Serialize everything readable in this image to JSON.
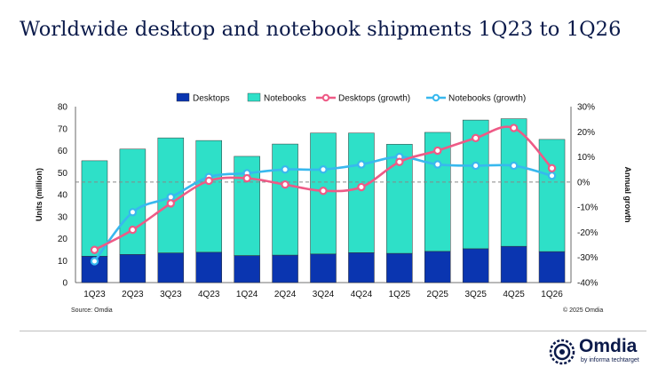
{
  "title": "Worldwide desktop and notebook shipments 1Q23 to 1Q26",
  "footer": {
    "source": "Source: Omdia",
    "copyright": "© 2025 Omdia"
  },
  "brand": {
    "name": "Omdia",
    "tagline": "by informa techtarget",
    "color": "#0b1a4a"
  },
  "chart_data": {
    "type": "bar",
    "stacked": true,
    "title": "Worldwide desktop and notebook shipments 1Q23 to 1Q26",
    "categories": [
      "1Q23",
      "2Q23",
      "3Q23",
      "4Q23",
      "1Q24",
      "2Q24",
      "3Q24",
      "4Q24",
      "1Q25",
      "2Q25",
      "3Q25",
      "4Q25",
      "1Q26"
    ],
    "ylabel": "Units (million)",
    "y2label": "Annual growth",
    "ylim": [
      0,
      80
    ],
    "yticks": [
      "0",
      "10",
      "20",
      "30",
      "40",
      "50",
      "60",
      "70",
      "80"
    ],
    "y2lim": [
      -40,
      30
    ],
    "y2ticks": [
      "-40%",
      "-30%",
      "-20%",
      "-10%",
      "0%",
      "10%",
      "20%",
      "30%"
    ],
    "zero_line_on_secondary": true,
    "legend_position": "top",
    "series": [
      {
        "name": "Desktops",
        "kind": "bar",
        "axis": "primary",
        "color": "#0a35b0",
        "values": [
          12.0,
          12.8,
          13.5,
          13.8,
          12.3,
          12.5,
          13.0,
          13.6,
          13.3,
          14.2,
          15.4,
          16.5,
          14.1
        ]
      },
      {
        "name": "Notebooks",
        "kind": "bar",
        "axis": "primary",
        "color": "#2ee0c8",
        "values": [
          43.4,
          47.9,
          52.3,
          50.8,
          45.1,
          50.5,
          55.0,
          54.4,
          49.6,
          54.1,
          58.5,
          58.0,
          51.0
        ]
      },
      {
        "name": "Desktops (growth)",
        "kind": "line",
        "axis": "secondary",
        "color": "#ee5a86",
        "values": [
          -27,
          -19,
          -8.5,
          0.5,
          1.5,
          -1,
          -3.5,
          -2,
          8,
          12.5,
          17.5,
          21.5,
          5.5
        ]
      },
      {
        "name": "Notebooks (growth)",
        "kind": "line",
        "axis": "secondary",
        "color": "#38b8ee",
        "values": [
          -31.5,
          -12,
          -6,
          2,
          3.5,
          5,
          5,
          7,
          10,
          7,
          6.5,
          6.5,
          2.5
        ]
      }
    ]
  }
}
